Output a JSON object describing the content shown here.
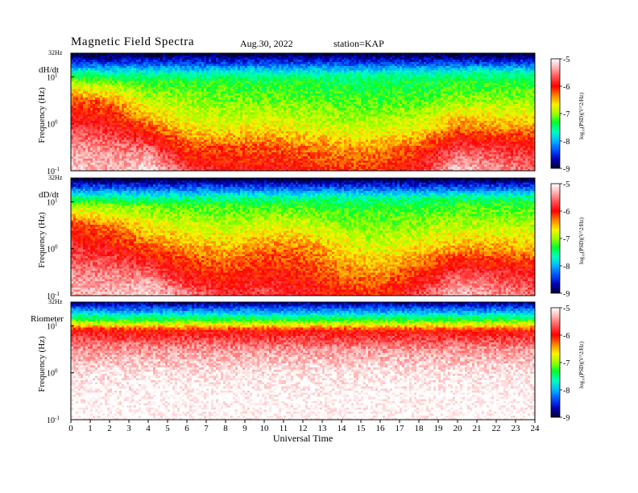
{
  "header": {
    "title": "Magnetic  Field  Spectra",
    "date": "Aug.30, 2022",
    "station": "station=KAP"
  },
  "chart_data": {
    "type": "heatmap",
    "xlabel": "Universal Time",
    "x_ticks": [
      "0",
      "1",
      "2",
      "3",
      "4",
      "5",
      "6",
      "7",
      "8",
      "9",
      "10",
      "11",
      "12",
      "13",
      "14",
      "15",
      "16",
      "17",
      "18",
      "19",
      "20",
      "21",
      "22",
      "23",
      "24"
    ],
    "xlim": [
      0,
      24
    ],
    "ylabel": "Frequency  (Hz)",
    "y_ticks": [
      {
        "value": -1,
        "base": "10",
        "exp": "-1"
      },
      {
        "value": 0,
        "base": "10",
        "exp": "0"
      },
      {
        "value": 1,
        "base": "10",
        "exp": "1"
      }
    ],
    "y_top_label": "32Hz",
    "y_scale": "log",
    "ylim_log10": [
      -1,
      1.505
    ],
    "colorbar": {
      "label": "log10(PSD)(V^2/Hz)",
      "label_display": "log₁₀(PSD)(V^2/Hz)",
      "ticks": [
        "-5",
        "-6",
        "-7",
        "-8",
        "-9"
      ],
      "range": [
        -9,
        -5
      ],
      "colors": [
        "#000030",
        "#0000b8",
        "#0050ff",
        "#00b4ff",
        "#00ffc0",
        "#00ff30",
        "#9cff00",
        "#fff000",
        "#ff8000",
        "#ff0000",
        "#ff5050",
        "#ffb0b0",
        "#ffffff"
      ]
    },
    "panels": [
      {
        "label": "dH/dt",
        "mean_log10_psd": {
          "note_units": "log10 PSD at freq bands (Hz)",
          "freq_log10": [
            -1.0,
            -0.5,
            0.0,
            0.5,
            0.9,
            1.1,
            1.3,
            1.5
          ],
          "hours": [
            0,
            2,
            4,
            6,
            8,
            10,
            12,
            14,
            16,
            18,
            20,
            22,
            24
          ],
          "values": [
            [
              -5.2,
              -5.3,
              -5.1,
              -5.7,
              -5.9,
              -5.9,
              -6.0,
              -6.1,
              -6.1,
              -5.8,
              -5.2,
              -5.4,
              -5.6
            ],
            [
              -5.4,
              -5.5,
              -5.6,
              -6.2,
              -6.2,
              -6.2,
              -6.3,
              -6.4,
              -6.4,
              -6.2,
              -5.7,
              -5.8,
              -5.9
            ],
            [
              -5.8,
              -5.9,
              -6.3,
              -6.7,
              -6.8,
              -6.7,
              -6.8,
              -6.9,
              -6.9,
              -6.8,
              -6.4,
              -6.5,
              -6.5
            ],
            [
              -6.2,
              -6.3,
              -6.9,
              -7.0,
              -7.1,
              -7.1,
              -7.1,
              -7.2,
              -7.2,
              -7.2,
              -7.0,
              -7.0,
              -7.0
            ],
            [
              -7.0,
              -7.1,
              -7.2,
              -7.3,
              -7.3,
              -7.3,
              -7.3,
              -7.4,
              -7.4,
              -7.4,
              -7.3,
              -7.3,
              -7.3
            ],
            [
              -7.6,
              -7.7,
              -7.7,
              -7.7,
              -7.7,
              -7.7,
              -7.7,
              -7.7,
              -7.7,
              -7.7,
              -7.6,
              -7.6,
              -7.6
            ],
            [
              -8.4,
              -8.4,
              -8.4,
              -8.4,
              -8.4,
              -8.4,
              -8.4,
              -8.4,
              -8.4,
              -8.4,
              -8.4,
              -8.4,
              -8.4
            ],
            [
              -9.0,
              -9.0,
              -9.0,
              -9.0,
              -9.0,
              -9.0,
              -9.0,
              -9.0,
              -9.0,
              -9.0,
              -9.0,
              -9.0,
              -9.0
            ]
          ]
        }
      },
      {
        "label": "dD/dt",
        "mean_log10_psd": {
          "note_units": "log10 PSD at freq bands (Hz)",
          "freq_log10": [
            -1.0,
            -0.5,
            0.0,
            0.5,
            0.9,
            1.1,
            1.3,
            1.5
          ],
          "hours": [
            0,
            2,
            4,
            6,
            8,
            10,
            12,
            14,
            16,
            18,
            20,
            22,
            24
          ],
          "values": [
            [
              -5.3,
              -5.3,
              -5.1,
              -5.5,
              -5.8,
              -5.7,
              -5.8,
              -6.0,
              -6.1,
              -5.7,
              -5.2,
              -5.4,
              -5.6
            ],
            [
              -5.5,
              -5.5,
              -5.6,
              -6.0,
              -6.1,
              -6.0,
              -6.1,
              -6.3,
              -6.4,
              -6.1,
              -5.7,
              -5.8,
              -5.9
            ],
            [
              -5.8,
              -5.9,
              -6.2,
              -6.4,
              -6.5,
              -6.3,
              -6.3,
              -6.6,
              -6.8,
              -6.6,
              -6.4,
              -6.4,
              -6.5
            ],
            [
              -6.1,
              -6.3,
              -6.7,
              -6.8,
              -6.9,
              -6.8,
              -6.8,
              -7.0,
              -7.1,
              -7.0,
              -6.9,
              -6.9,
              -6.9
            ],
            [
              -6.9,
              -7.0,
              -7.1,
              -7.2,
              -7.2,
              -7.2,
              -7.2,
              -7.3,
              -7.3,
              -7.3,
              -7.2,
              -7.2,
              -7.2
            ],
            [
              -7.5,
              -7.6,
              -7.6,
              -7.6,
              -7.6,
              -7.6,
              -7.6,
              -7.6,
              -7.6,
              -7.6,
              -7.5,
              -7.5,
              -7.5
            ],
            [
              -8.3,
              -8.3,
              -8.3,
              -8.3,
              -8.3,
              -8.3,
              -8.3,
              -8.3,
              -8.3,
              -8.3,
              -8.3,
              -8.3,
              -8.3
            ],
            [
              -9.0,
              -9.0,
              -9.0,
              -9.0,
              -9.0,
              -9.0,
              -9.0,
              -9.0,
              -9.0,
              -9.0,
              -9.0,
              -9.0,
              -9.0
            ]
          ]
        }
      },
      {
        "label": "Riometer",
        "mean_log10_psd": {
          "note_units": "log10 PSD at freq bands (Hz)",
          "freq_log10": [
            -1.0,
            -0.5,
            0.0,
            0.5,
            0.9,
            1.1,
            1.3,
            1.5
          ],
          "hours": [
            0,
            2,
            4,
            6,
            8,
            10,
            12,
            14,
            16,
            18,
            20,
            22,
            24
          ],
          "values": [
            [
              -5.0,
              -5.0,
              -5.0,
              -5.0,
              -5.0,
              -5.0,
              -5.0,
              -5.0,
              -5.0,
              -5.0,
              -5.0,
              -5.0,
              -5.0
            ],
            [
              -5.0,
              -5.0,
              -5.0,
              -5.0,
              -5.0,
              -5.0,
              -5.0,
              -5.0,
              -5.0,
              -5.0,
              -5.0,
              -5.0,
              -5.0
            ],
            [
              -5.1,
              -5.1,
              -5.1,
              -5.1,
              -5.1,
              -5.1,
              -5.1,
              -5.1,
              -5.1,
              -5.1,
              -5.1,
              -5.1,
              -5.1
            ],
            [
              -5.4,
              -5.4,
              -5.4,
              -5.4,
              -5.4,
              -5.4,
              -5.4,
              -5.4,
              -5.4,
              -5.4,
              -5.4,
              -5.4,
              -5.4
            ],
            [
              -5.9,
              -6.0,
              -6.0,
              -6.0,
              -6.0,
              -6.0,
              -6.0,
              -6.0,
              -6.0,
              -6.0,
              -6.0,
              -6.0,
              -6.0
            ],
            [
              -7.0,
              -7.1,
              -7.1,
              -7.1,
              -7.1,
              -7.1,
              -7.1,
              -7.1,
              -7.1,
              -7.1,
              -7.1,
              -7.1,
              -7.1
            ],
            [
              -7.9,
              -8.0,
              -8.0,
              -8.0,
              -8.0,
              -8.0,
              -8.0,
              -8.0,
              -8.0,
              -8.0,
              -8.0,
              -8.0,
              -8.0
            ],
            [
              -8.8,
              -8.8,
              -8.8,
              -8.8,
              -8.8,
              -8.8,
              -8.8,
              -8.8,
              -8.8,
              -8.8,
              -8.8,
              -8.8,
              -8.8
            ]
          ]
        }
      }
    ]
  }
}
